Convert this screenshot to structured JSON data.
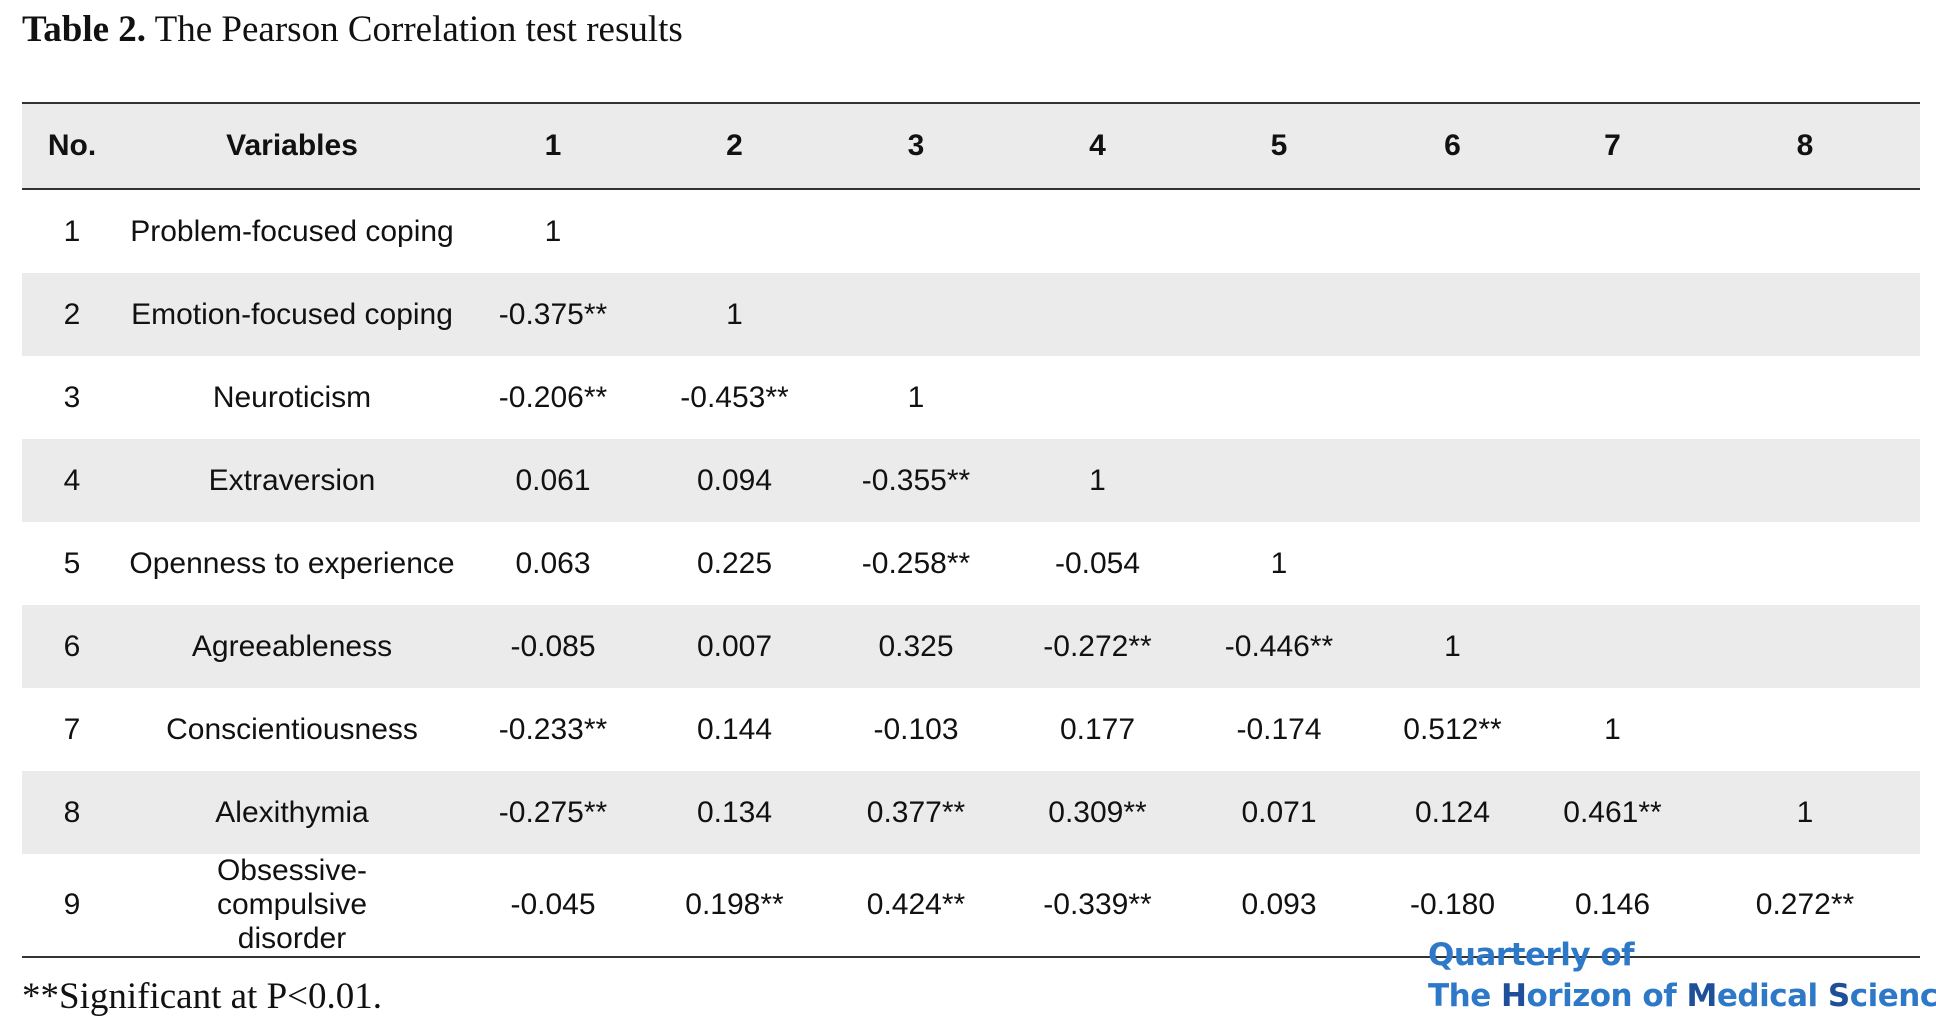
{
  "caption": {
    "label": "Table 2.",
    "title": "The Pearson Correlation test results"
  },
  "table": {
    "headers": [
      "No.",
      "Variables",
      "1",
      "2",
      "3",
      "4",
      "5",
      "6",
      "7",
      "8"
    ],
    "rows": [
      [
        "1",
        "Problem-focused coping",
        "1",
        "",
        "",
        "",
        "",
        "",
        "",
        ""
      ],
      [
        "2",
        "Emotion-focused coping",
        "-0.375**",
        "1",
        "",
        "",
        "",
        "",
        "",
        ""
      ],
      [
        "3",
        "Neuroticism",
        "-0.206**",
        "-0.453**",
        "1",
        "",
        "",
        "",
        "",
        ""
      ],
      [
        "4",
        "Extraversion",
        "0.061",
        "0.094",
        "-0.355**",
        "1",
        "",
        "",
        "",
        ""
      ],
      [
        "5",
        "Openness to experience",
        "0.063",
        "0.225",
        "-0.258**",
        "-0.054",
        "1",
        "",
        "",
        ""
      ],
      [
        "6",
        "Agreeableness",
        "-0.085",
        "0.007",
        "0.325",
        "-0.272**",
        "-0.446**",
        "1",
        "",
        ""
      ],
      [
        "7",
        "Conscientiousness",
        "-0.233**",
        "0.144",
        "-0.103",
        "0.177",
        "-0.174",
        "0.512**",
        "1",
        ""
      ],
      [
        "8",
        "Alexithymia",
        "-0.275**",
        "0.134",
        "0.377**",
        "0.309**",
        "0.071",
        "0.124",
        "0.461**",
        "1"
      ],
      [
        "9",
        "Obsessive-compulsive disorder",
        "-0.045",
        "0.198**",
        "0.424**",
        "-0.339**",
        "0.093",
        "-0.180",
        "0.146",
        "0.272**"
      ]
    ]
  },
  "footnote": "**Significant at P<0.01.",
  "journal": {
    "line1": "Quarterly of",
    "line2": {
      "the": "The ",
      "h": "H",
      "orizon": "orizon of ",
      "m": "M",
      "edical": "edical ",
      "s": "S",
      "ciences": "ciences"
    }
  },
  "colors": {
    "header_bg": "#ebebeb",
    "stripe_bg": "#ebebeb",
    "journal_blue": "#2e78c8",
    "journal_accent": "#1f4f99"
  }
}
